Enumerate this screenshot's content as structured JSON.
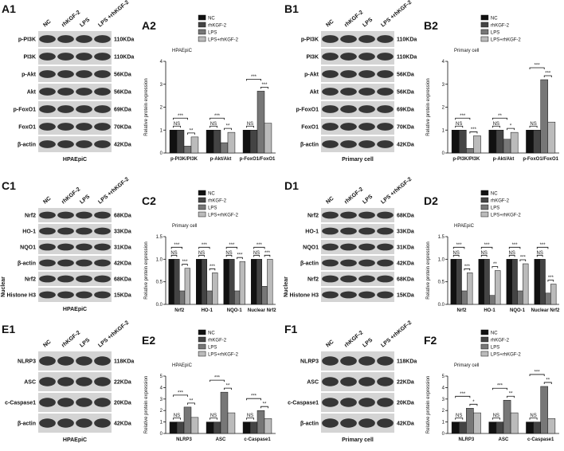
{
  "blots": [
    {
      "panel": "A1",
      "lanes": [
        "NC",
        "rhKGF-2",
        "LPS",
        "LPS +rhKGF-2"
      ],
      "rows": [
        {
          "protein": "p-PI3K",
          "size": "110KDa"
        },
        {
          "protein": "PI3K",
          "size": "110KDa"
        },
        {
          "protein": "p-Akt",
          "size": "56KDa"
        },
        {
          "protein": "Akt",
          "size": "56KDa"
        },
        {
          "protein": "p-FoxO1",
          "size": "69KDa"
        },
        {
          "protein": "FoxO1",
          "size": "70KDa"
        },
        {
          "protein": "β-actin",
          "size": "42KDa"
        }
      ],
      "caption": "HPAEpiC"
    },
    {
      "panel": "B1",
      "lanes": [
        "NC",
        "rhKGF-2",
        "LPS",
        "LPS +rhKGF-2"
      ],
      "rows": [
        {
          "protein": "p-PI3K",
          "size": "110KDa"
        },
        {
          "protein": "PI3K",
          "size": "110KDa"
        },
        {
          "protein": "p-Akt",
          "size": "56KDa"
        },
        {
          "protein": "Akt",
          "size": "56KDa"
        },
        {
          "protein": "p-FoxO1",
          "size": "69KDa"
        },
        {
          "protein": "FoxO1",
          "size": "70KDa"
        },
        {
          "protein": "β-actin",
          "size": "42KDa"
        }
      ],
      "caption": "Primary cell"
    },
    {
      "panel": "C1",
      "lanes": [
        "NC",
        "rhKGF-2",
        "LPS",
        "LPS +rhKGF-2"
      ],
      "rows": [
        {
          "protein": "Nrf2",
          "size": "68KDa"
        },
        {
          "protein": "HO-1",
          "size": "33KDa"
        },
        {
          "protein": "NQO1",
          "size": "31KDa"
        },
        {
          "protein": "β-actin",
          "size": "42KDa"
        },
        {
          "protein": "Nrf2",
          "size": "68KDa"
        },
        {
          "protein": "Histone H3",
          "size": "15KDa"
        }
      ],
      "side_label": "Nuclear",
      "caption": "HPAEpiC"
    },
    {
      "panel": "D1",
      "lanes": [
        "NC",
        "rhKGF-2",
        "LPS",
        "LPS +rhKGF-2"
      ],
      "rows": [
        {
          "protein": "Nrf2",
          "size": "68KDa"
        },
        {
          "protein": "HO-1",
          "size": "33KDa"
        },
        {
          "protein": "NQO1",
          "size": "31KDa"
        },
        {
          "protein": "β-actin",
          "size": "42KDa"
        },
        {
          "protein": "Nrf2",
          "size": "68KDa"
        },
        {
          "protein": "Histone H3",
          "size": "15KDa"
        }
      ],
      "side_label": "Nuclear"
    },
    {
      "panel": "E1",
      "lanes": [
        "NC",
        "rhKGF-2",
        "LPS",
        "LPS +rhKGF-2"
      ],
      "rows": [
        {
          "protein": "NLRP3",
          "size": "118KDa"
        },
        {
          "protein": "ASC",
          "size": "22KDa"
        },
        {
          "protein": "c-Caspase1",
          "size": "20KDa"
        },
        {
          "protein": "β-actin",
          "size": "42KDa"
        }
      ],
      "caption": "HPAEpiC"
    },
    {
      "panel": "F1",
      "lanes": [
        "NC",
        "rhKGF-2",
        "LPS",
        "LPS +rhKGF-2"
      ],
      "rows": [
        {
          "protein": "NLRP3",
          "size": "118KDa"
        },
        {
          "protein": "ASC",
          "size": "22KDa"
        },
        {
          "protein": "c-Caspase1",
          "size": "20KDa"
        },
        {
          "protein": "β-actin",
          "size": "42KDa"
        }
      ],
      "caption": "Primary cell"
    }
  ],
  "chart_data": [
    {
      "type": "bar",
      "panel": "A2",
      "title": "HPAEpiC",
      "y_label": "Relative protein expression",
      "categories": [
        "p-PI3K/PI3K",
        "p-Akt/Akt",
        "p-FoxO1/FoxO1"
      ],
      "series": [
        {
          "name": "NC",
          "color": "#111111",
          "values": [
            1,
            1,
            1
          ]
        },
        {
          "name": "rhKGF-2",
          "color": "#444444",
          "values": [
            1,
            1,
            1
          ]
        },
        {
          "name": "LPS",
          "color": "#777777",
          "values": [
            0.3,
            0.45,
            2.7
          ]
        },
        {
          "name": "LPS+rhKGF-2",
          "color": "#bbbbbb",
          "values": [
            0.7,
            0.9,
            1.3
          ]
        }
      ],
      "ylim": [
        0,
        4
      ],
      "yticks": [
        0,
        1,
        2,
        3,
        4
      ],
      "significance": [
        [
          "NS",
          "***",
          "**"
        ],
        [
          "NS",
          "***",
          "**"
        ],
        [
          "NS",
          "***",
          "***"
        ]
      ]
    },
    {
      "type": "bar",
      "panel": "B2",
      "title": "Primary cell",
      "y_label": "Relative protein expression",
      "categories": [
        "p-PI3K/PI3K",
        "p-Akt/Akt",
        "p-FoxO1/FoxO1"
      ],
      "series": [
        {
          "name": "NC",
          "color": "#111111",
          "values": [
            1,
            1,
            1
          ]
        },
        {
          "name": "rhKGF-2",
          "color": "#444444",
          "values": [
            1,
            1,
            1
          ]
        },
        {
          "name": "LPS",
          "color": "#777777",
          "values": [
            0.2,
            0.6,
            3.2
          ]
        },
        {
          "name": "LPS+rhKGF-2",
          "color": "#bbbbbb",
          "values": [
            0.75,
            0.9,
            1.35
          ]
        }
      ],
      "ylim": [
        0,
        4
      ],
      "yticks": [
        0,
        1,
        2,
        3,
        4
      ],
      "significance": [
        [
          "NS",
          "***",
          "***"
        ],
        [
          "NS",
          "**",
          "*"
        ],
        [
          "NS",
          "***",
          "***"
        ]
      ]
    },
    {
      "type": "bar",
      "panel": "C2",
      "title": "Primary cell",
      "y_label": "Relative protein expression",
      "categories": [
        "Nrf2",
        "HO-1",
        "NQO-1",
        "Nuclear Nrf2"
      ],
      "series": [
        {
          "name": "NC",
          "color": "#111111",
          "values": [
            1,
            1,
            1,
            1
          ]
        },
        {
          "name": "rhKGF-2",
          "color": "#444444",
          "values": [
            1,
            1,
            1,
            1
          ]
        },
        {
          "name": "LPS",
          "color": "#777777",
          "values": [
            0.3,
            0.3,
            0.3,
            0.4
          ]
        },
        {
          "name": "LPS+rhKGF-2",
          "color": "#bbbbbb",
          "values": [
            0.8,
            0.7,
            0.95,
            1.0
          ]
        }
      ],
      "ylim": [
        0,
        1.5
      ],
      "yticks": [
        {
          "value": 0,
          "label": "0.0"
        },
        0.5,
        {
          "value": 1,
          "label": "1.0"
        },
        1.5
      ],
      "significance": [
        [
          "NS",
          "***",
          "***"
        ],
        [
          "NS",
          "***",
          "***"
        ],
        [
          "NS",
          "***",
          "***"
        ],
        [
          "NS",
          "***",
          "***"
        ]
      ]
    },
    {
      "type": "bar",
      "panel": "D2",
      "title": "HPAEpiC",
      "y_label": "Relative protein expression",
      "categories": [
        "Nrf2",
        "HO-1",
        "NQO-1",
        "Nuclear Nrf2"
      ],
      "series": [
        {
          "name": "NC",
          "color": "#111111",
          "values": [
            1,
            1,
            1,
            1
          ]
        },
        {
          "name": "rhKGF-2",
          "color": "#444444",
          "values": [
            1,
            1,
            1,
            1
          ]
        },
        {
          "name": "LPS",
          "color": "#777777",
          "values": [
            0.3,
            0.2,
            0.3,
            0.25
          ]
        },
        {
          "name": "LPS+rhKGF-2",
          "color": "#bbbbbb",
          "values": [
            0.7,
            0.75,
            0.9,
            0.45
          ]
        }
      ],
      "ylim": [
        0,
        1.5
      ],
      "yticks": [
        {
          "value": 0,
          "label": "0.0"
        },
        0.5,
        {
          "value": 1,
          "label": "1.0"
        },
        1.5
      ],
      "significance": [
        [
          "NS",
          "***",
          "***"
        ],
        [
          "NS",
          "***",
          "**"
        ],
        [
          "NS",
          "***",
          "***"
        ],
        [
          "NS",
          "***",
          "***"
        ]
      ]
    },
    {
      "type": "bar",
      "panel": "E2",
      "title": "HPAEpiC",
      "y_label": "Relative protein expression",
      "categories": [
        "NLRP3",
        "ASC",
        "c-Caspase1"
      ],
      "series": [
        {
          "name": "NC",
          "color": "#111111",
          "values": [
            1,
            1,
            1
          ]
        },
        {
          "name": "rhKGF-2",
          "color": "#444444",
          "values": [
            1,
            1,
            1
          ]
        },
        {
          "name": "LPS",
          "color": "#777777",
          "values": [
            2.3,
            3.6,
            2.0
          ]
        },
        {
          "name": "LPS+rhKGF-2",
          "color": "#bbbbbb",
          "values": [
            1.4,
            1.8,
            1.3
          ]
        }
      ],
      "ylim": [
        0,
        5
      ],
      "yticks": [
        0,
        1,
        2,
        3,
        4,
        5
      ],
      "significance": [
        [
          "NS",
          "***",
          "**"
        ],
        [
          "NS",
          "***",
          "**"
        ],
        [
          "NS",
          "***",
          "**"
        ]
      ]
    },
    {
      "type": "bar",
      "panel": "F2",
      "title": "Primary cell",
      "y_label": "Relative protein expression",
      "categories": [
        "NLRP3",
        "ASC",
        "c-Caspase1"
      ],
      "series": [
        {
          "name": "NC",
          "color": "#111111",
          "values": [
            1,
            1,
            1
          ]
        },
        {
          "name": "rhKGF-2",
          "color": "#444444",
          "values": [
            1,
            1,
            1
          ]
        },
        {
          "name": "LPS",
          "color": "#777777",
          "values": [
            2.2,
            2.9,
            4.1
          ]
        },
        {
          "name": "LPS+rhKGF-2",
          "color": "#bbbbbb",
          "values": [
            1.8,
            1.8,
            1.3
          ]
        }
      ],
      "ylim": [
        0,
        5
      ],
      "yticks": [
        0,
        1,
        2,
        3,
        4,
        5
      ],
      "significance": [
        [
          "NS",
          "***",
          "*"
        ],
        [
          "NS",
          "***",
          "**"
        ],
        [
          "NS",
          "***",
          "**"
        ]
      ]
    }
  ]
}
